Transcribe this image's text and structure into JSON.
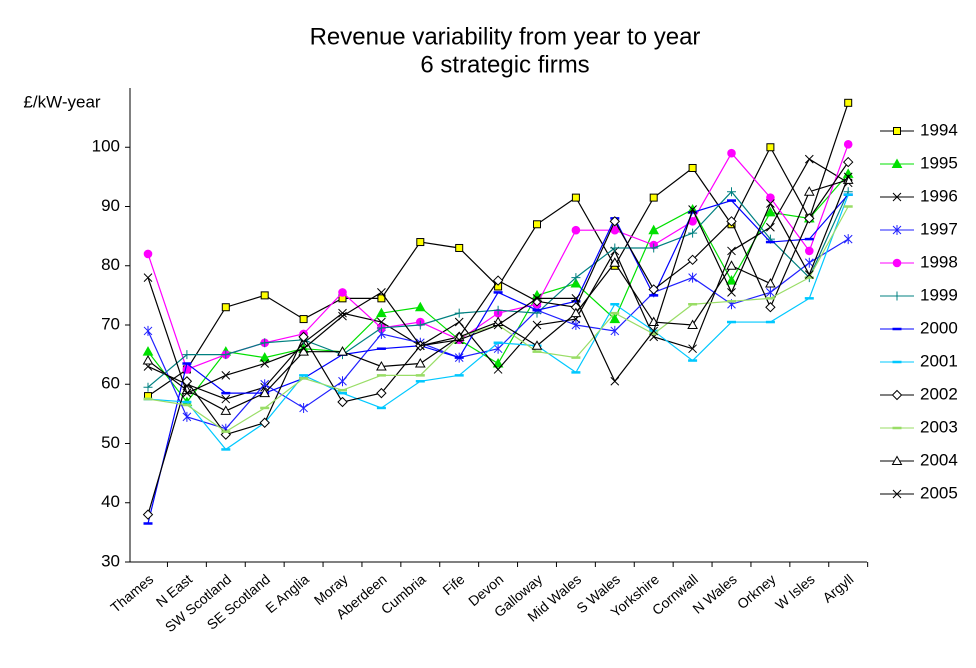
{
  "chart_data": {
    "type": "line",
    "title": "Revenue variability from year to year",
    "subtitle": "6 strategic firms",
    "y_label": "£/kW-year",
    "categories": [
      "Thames",
      "N East",
      "SW Scotland",
      "SE Scotland",
      "E Anglia",
      "Moray",
      "Aberdeen",
      "Cumbria",
      "Fife",
      "Devon",
      "Galloway",
      "Mid Wales",
      "S Wales",
      "Yorkshire",
      "Cornwall",
      "N Wales",
      "Orkney",
      "W Isles",
      "Argyll"
    ],
    "ylim": [
      30,
      110
    ],
    "yticks": [
      30,
      40,
      50,
      60,
      70,
      80,
      90,
      100
    ],
    "grid": false,
    "legend": "right",
    "series": [
      {
        "name": "1994",
        "color": "#000000",
        "marker": "square",
        "marker_color": "#ffff00",
        "values": [
          58,
          62.5,
          73,
          75,
          71,
          74.5,
          74.5,
          84,
          83,
          76.5,
          87,
          91.5,
          80,
          91.5,
          96.5,
          87,
          100,
          88,
          107.5
        ]
      },
      {
        "name": "1995",
        "color": "#00e000",
        "marker": "triangle",
        "marker_color": "#00e000",
        "values": [
          65.5,
          57,
          65.5,
          64.5,
          66,
          65.5,
          72,
          73,
          67.5,
          63.5,
          75,
          77,
          71,
          86,
          89.5,
          77.5,
          89,
          88,
          95.5
        ]
      },
      {
        "name": "1996",
        "color": "#000000",
        "marker": "x",
        "marker_color": "#000000",
        "values": [
          63,
          60,
          57.5,
          59.5,
          67,
          72,
          70.5,
          66.5,
          70.5,
          62.5,
          70,
          71,
          82.5,
          68,
          66,
          82.5,
          86.5,
          98,
          94
        ]
      },
      {
        "name": "1997",
        "color": "#2020ff",
        "marker": "asterisk",
        "marker_color": "#2020ff",
        "values": [
          69,
          54.5,
          52.5,
          60,
          56,
          60.5,
          68.5,
          67,
          64.5,
          66,
          72.5,
          70,
          69,
          75.5,
          78,
          73.5,
          75.5,
          80.5,
          84.5
        ]
      },
      {
        "name": "1998",
        "color": "#ff00ff",
        "marker": "circle",
        "marker_color": "#ff00ff",
        "values": [
          82,
          62.5,
          65,
          67,
          68.5,
          75.5,
          69.5,
          70.5,
          67.5,
          72,
          73.5,
          86,
          86,
          83.5,
          87.5,
          99,
          91.5,
          82.5,
          100.5
        ]
      },
      {
        "name": "1999",
        "color": "#008080",
        "marker": "plus",
        "marker_color": "#008080",
        "values": [
          59.5,
          65,
          65,
          67,
          67.5,
          65,
          69.5,
          70,
          72,
          72.5,
          72,
          78,
          83,
          83,
          85.5,
          92.5,
          84.5,
          78,
          92.5
        ]
      },
      {
        "name": "2000",
        "color": "#0000ff",
        "marker": "dash",
        "marker_color": "#0000ff",
        "values": [
          36.5,
          63.5,
          58.5,
          58.5,
          61,
          65,
          66,
          66.5,
          64.5,
          75.5,
          72.5,
          74,
          88,
          75,
          89,
          91,
          84,
          84.5,
          92
        ]
      },
      {
        "name": "2001",
        "color": "#00c8ff",
        "marker": "dash",
        "marker_color": "#00c8ff",
        "values": [
          57.5,
          57,
          49,
          53.5,
          61.5,
          58.5,
          56,
          60.5,
          61.5,
          67,
          66.5,
          62,
          73.5,
          69,
          64,
          70.5,
          70.5,
          74.5,
          92
        ]
      },
      {
        "name": "2002",
        "color": "#000000",
        "marker": "diamond",
        "marker_color": "#ffffff",
        "values": [
          38,
          60.5,
          51.5,
          53.5,
          68,
          57,
          58.5,
          66.5,
          68,
          77.5,
          74,
          73,
          87.5,
          76,
          81,
          87.5,
          73,
          88,
          97.5
        ]
      },
      {
        "name": "2003",
        "color": "#99dd66",
        "marker": "dash",
        "marker_color": "#99dd66",
        "values": [
          57.5,
          56.5,
          52,
          56,
          61,
          59,
          61.5,
          61.5,
          68,
          70,
          65.5,
          64.5,
          72,
          68.5,
          73.5,
          74,
          74.5,
          78,
          90
        ]
      },
      {
        "name": "2004",
        "color": "#000000",
        "marker": "triangle",
        "marker_color": "#ffffff",
        "values": [
          64,
          59,
          55.5,
          58.5,
          65.5,
          65.5,
          63,
          63.5,
          68,
          70.5,
          66.5,
          72,
          80.5,
          70.5,
          70,
          80,
          77,
          92.5,
          94.5
        ]
      },
      {
        "name": "2005",
        "color": "#000000",
        "marker": "x",
        "marker_color": "#000000",
        "values": [
          78,
          58.5,
          61.5,
          63.5,
          66,
          71.5,
          75.5,
          66.5,
          67.5,
          70,
          74.5,
          74.5,
          60.5,
          69,
          89.5,
          75.5,
          90.5,
          78.5,
          95
        ]
      }
    ]
  }
}
